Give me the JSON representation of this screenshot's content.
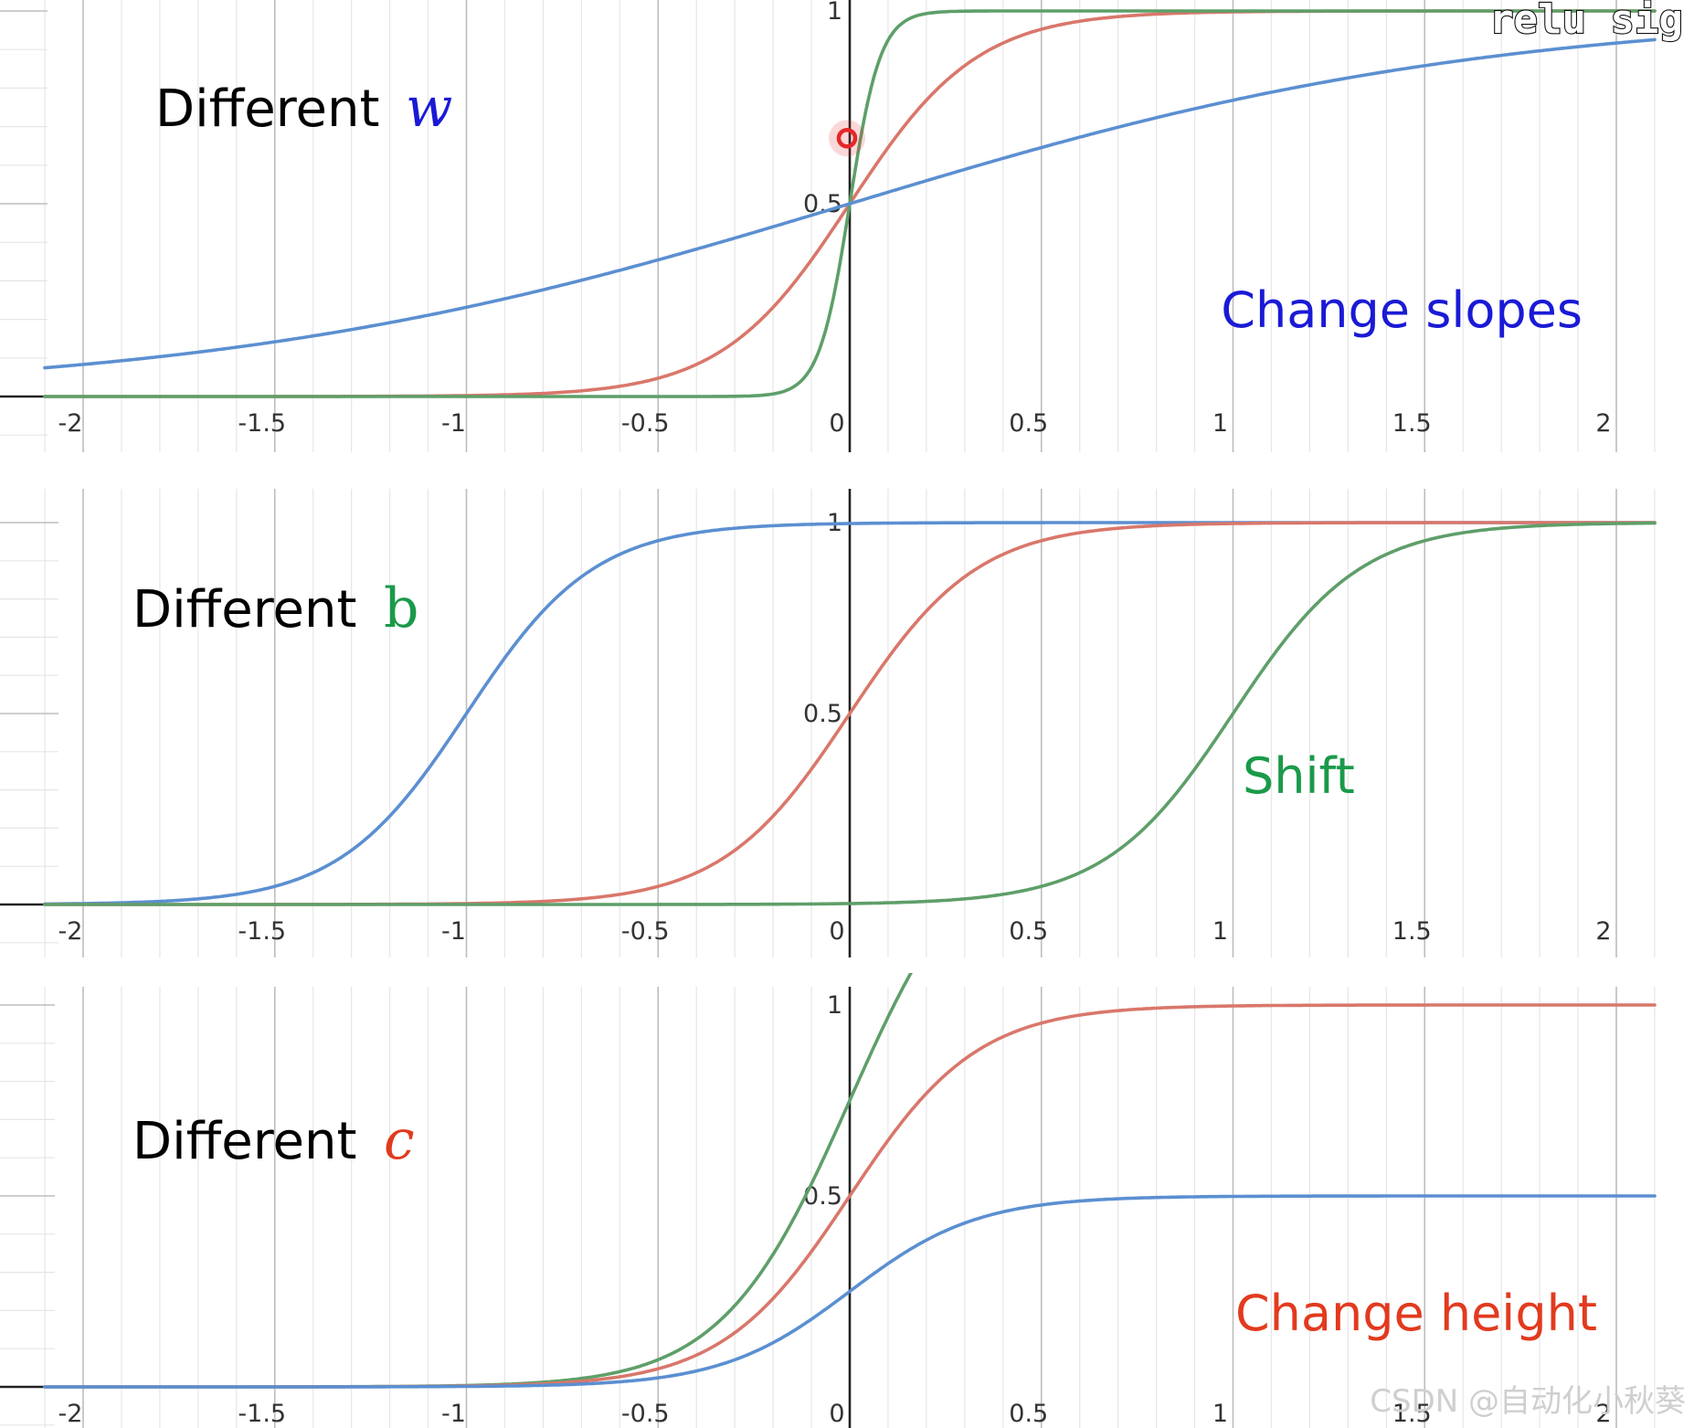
{
  "overlay_text": "relu sig",
  "watermark": "CSDN @自动化小秋葵",
  "colors": {
    "red": "#d9776b",
    "green": "#5e9f69",
    "blue": "#5b8fd1"
  },
  "chart_data": [
    {
      "type": "line",
      "xlim": [
        -2.1,
        2.1
      ],
      "ylim": [
        0,
        1
      ],
      "x_ticks": [
        "-2",
        "-1.5",
        "-1",
        "-0.5",
        "0",
        "0.5",
        "1",
        "1.5",
        "2"
      ],
      "y_ticks": [
        "0.5",
        "1"
      ],
      "grid": true,
      "annotation_left": {
        "text": "Different",
        "variable": "w",
        "variable_color": "#1a1ad6"
      },
      "annotation_right": {
        "text": "Change slopes",
        "color": "#1a1ad6"
      },
      "series": [
        {
          "color": "red",
          "w": 6,
          "b": 0,
          "c": 1
        },
        {
          "color": "green",
          "w": 25,
          "b": 0,
          "c": 1
        },
        {
          "color": "blue",
          "w": 1.2,
          "b": 0,
          "c": 1
        }
      ],
      "marker": {
        "x": 0,
        "y": 0.67,
        "color": "#e5262a"
      }
    },
    {
      "type": "line",
      "xlim": [
        -2.1,
        2.1
      ],
      "ylim": [
        0,
        1
      ],
      "x_ticks": [
        "-2",
        "-1.5",
        "-1",
        "-0.5",
        "0",
        "0.5",
        "1",
        "1.5",
        "2"
      ],
      "y_ticks": [
        "0.5",
        "1"
      ],
      "grid": true,
      "annotation_left": {
        "text": "Different",
        "variable": "b",
        "variable_color": "#1a9a4a"
      },
      "annotation_right": {
        "text": "Shift",
        "color": "#1a9a4a"
      },
      "series": [
        {
          "color": "blue",
          "w": 6,
          "b": 6,
          "c": 1
        },
        {
          "color": "red",
          "w": 6,
          "b": 0,
          "c": 1
        },
        {
          "color": "green",
          "w": 6,
          "b": -6,
          "c": 1
        }
      ]
    },
    {
      "type": "line",
      "xlim": [
        -2.1,
        2.1
      ],
      "ylim": [
        0,
        1
      ],
      "x_ticks": [
        "-2",
        "-1.5",
        "-1",
        "-0.5",
        "0",
        "0.5",
        "1",
        "1.5",
        "2"
      ],
      "y_ticks": [
        "0.5",
        "1"
      ],
      "grid": true,
      "annotation_left": {
        "text": "Different",
        "variable": "c",
        "variable_color": "#e23a1e"
      },
      "annotation_right": {
        "text": "Change height",
        "color": "#e23a1e"
      },
      "series": [
        {
          "color": "green",
          "w": 6,
          "b": 0,
          "c": 1.5
        },
        {
          "color": "red",
          "w": 6,
          "b": 0,
          "c": 1
        },
        {
          "color": "blue",
          "w": 6,
          "b": 0,
          "c": 0.5
        }
      ]
    }
  ]
}
